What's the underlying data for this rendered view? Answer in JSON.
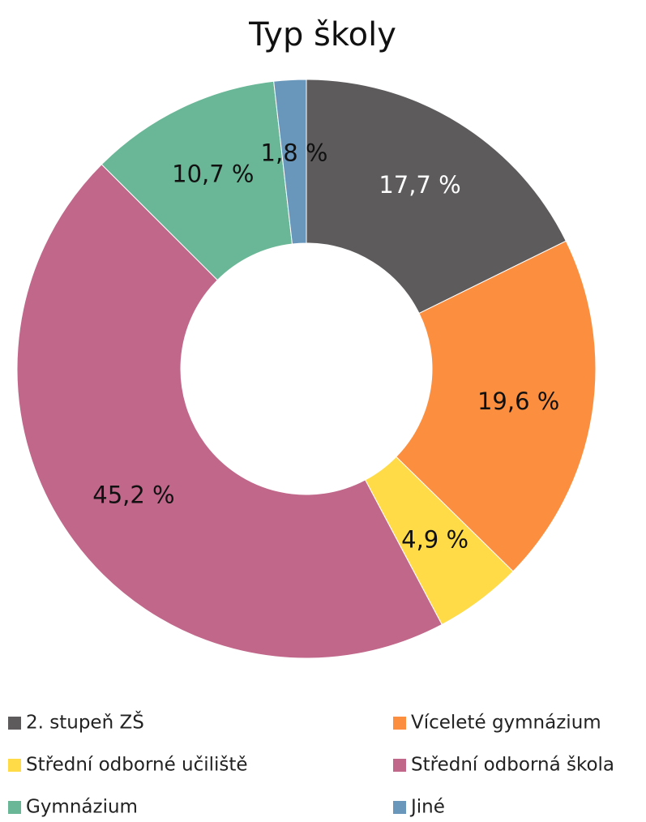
{
  "chart_data": {
    "type": "donut",
    "title": "Typ školy",
    "categories": [
      "2. stupeň ZŠ",
      "Víceleté gymnázium",
      "Střední odborné učiliště",
      "Střední odborná škola",
      "Gymnázium",
      "Jiné"
    ],
    "values": [
      17.7,
      19.6,
      4.9,
      45.2,
      10.7,
      1.8
    ],
    "value_labels": [
      "17,7 %",
      "19,6 %",
      "4,9 %",
      "45,2 %",
      "10,7 %",
      "1,8 %"
    ],
    "colors": [
      "#5d5b5b",
      "#fb8f3f",
      "#fedb47",
      "#c0678a",
      "#6ab797",
      "#6897bb"
    ],
    "label_colors": [
      "#ffffff",
      "#111111",
      "#111111",
      "#111111",
      "#111111",
      "#111111"
    ],
    "legend": "bottom"
  }
}
